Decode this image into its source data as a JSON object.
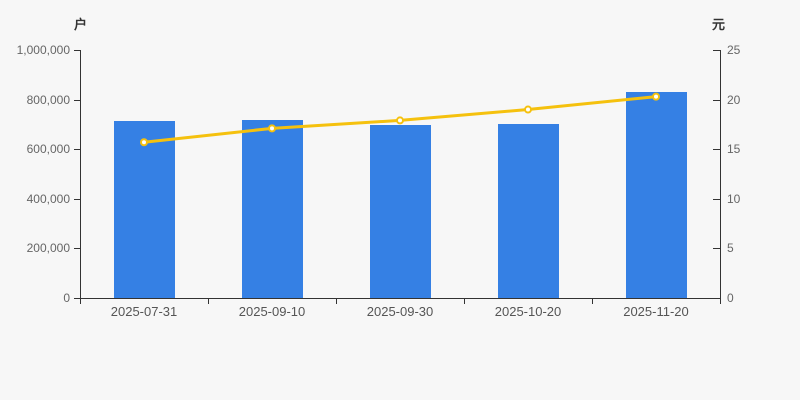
{
  "chart_data": {
    "type": "bar",
    "categories": [
      "2025-07-31",
      "2025-09-10",
      "2025-09-30",
      "2025-10-20",
      "2025-11-20"
    ],
    "series": [
      {
        "name": "bar-series",
        "type": "bar",
        "axis": "left",
        "color": "#3580e4",
        "values": [
          713700,
          717700,
          697600,
          701600,
          830600
        ]
      },
      {
        "name": "line-series",
        "type": "line",
        "axis": "right",
        "color": "#f5c10e",
        "marker_fill": "#ffffff",
        "values": [
          15.7,
          17.1,
          17.9,
          19.0,
          20.3
        ]
      }
    ],
    "left_axis": {
      "label": "户",
      "min": 0,
      "max": 1000000,
      "tick_values": [
        0,
        200000,
        400000,
        600000,
        800000,
        1000000
      ],
      "tick_labels": [
        "0",
        "200,000",
        "400,000",
        "600,000",
        "800,000",
        "1,000,000"
      ]
    },
    "right_axis": {
      "label": "元",
      "min": 0,
      "max": 25,
      "tick_values": [
        0,
        5,
        10,
        15,
        20,
        25
      ],
      "tick_labels": [
        "0",
        "5",
        "10",
        "15",
        "20",
        "25"
      ]
    },
    "grid": false,
    "legend": null,
    "title": ""
  },
  "style": {
    "background": "#f7f7f7",
    "axis_color": "#333333",
    "ytick_color": "#666666",
    "xtick_color": "#555555",
    "bar_color": "#3580e4",
    "line_color": "#f5c10e"
  }
}
